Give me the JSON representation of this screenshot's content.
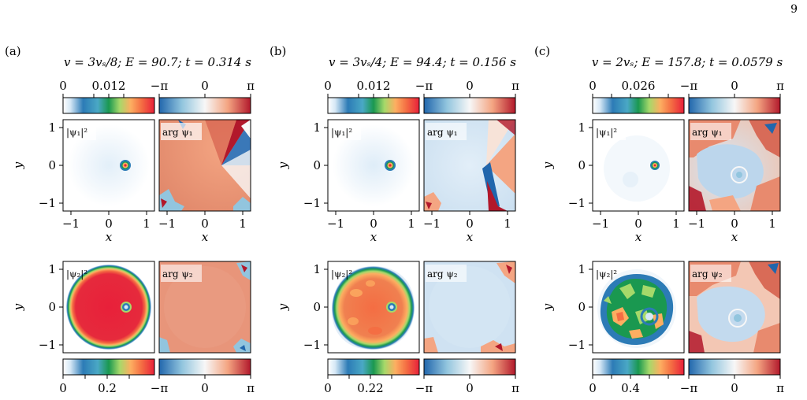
{
  "page_number": "9",
  "panels": [
    {
      "letter": "(a)",
      "title": "v = 3vₛ/8;  E = 90.7;  t = 0.314 s",
      "cb_top_density_ticks": [
        "0",
        "0.012"
      ],
      "cb_phase_ticks": [
        "−π",
        "0",
        "π"
      ],
      "cb_bottom_density_ticks": [
        "0",
        "0.2"
      ],
      "label_psi1_density": "|ψ₁|²",
      "label_psi1_phase": "arg ψ₁",
      "label_psi2_density": "|ψ₂|²",
      "label_psi2_phase": "arg ψ₂"
    },
    {
      "letter": "(b)",
      "title": "v = 3vₛ/4;  E = 94.4;  t = 0.156 s",
      "cb_top_density_ticks": [
        "0",
        "0.012"
      ],
      "cb_phase_ticks": [
        "−π",
        "0",
        "π"
      ],
      "cb_bottom_density_ticks": [
        "0",
        "0.22"
      ],
      "label_psi1_density": "|ψ₁|²",
      "label_psi1_phase": "arg ψ₁",
      "label_psi2_density": "|ψ₂|²",
      "label_psi2_phase": "arg ψ₂"
    },
    {
      "letter": "(c)",
      "title": "v = 2vₛ;  E = 157.8;  t = 0.0579 s",
      "cb_top_density_ticks": [
        "0",
        "0.026"
      ],
      "cb_phase_ticks": [
        "−π",
        "0",
        "π"
      ],
      "cb_bottom_density_ticks": [
        "0",
        "0.4"
      ],
      "label_psi1_density": "|ψ₁|²",
      "label_psi1_phase": "arg ψ₁",
      "label_psi2_density": "|ψ₂|²",
      "label_psi2_phase": "arg ψ₂"
    }
  ],
  "axes": {
    "x_label": "x",
    "y_label": "y",
    "x_ticks": [
      "−1",
      "0",
      "1"
    ],
    "y_ticks": [
      "1",
      "0",
      "−1"
    ]
  },
  "colors": {
    "density_colormap": [
      "#ffffff",
      "#e8f2fb",
      "#a9cdea",
      "#2c7bb6",
      "#1a9850",
      "#a6d96a",
      "#fdae61",
      "#f46d43",
      "#d73027"
    ],
    "phase_colormap": [
      "#2166ac",
      "#92c5de",
      "#f7f7f7",
      "#f4a582",
      "#b2182b"
    ]
  }
}
